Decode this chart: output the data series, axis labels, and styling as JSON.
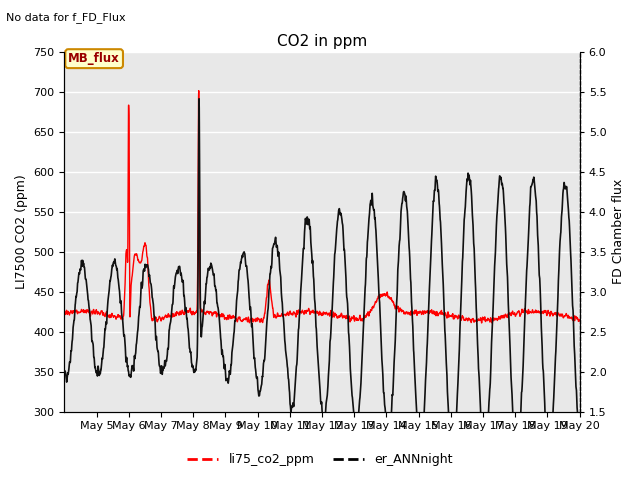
{
  "title": "CO2 in ppm",
  "top_left_text": "No data for f_FD_Flux",
  "ylabel_left": "LI7500 CO2 (ppm)",
  "ylabel_right": "FD Chamber flux",
  "ylim_left": [
    300,
    750
  ],
  "ylim_right": [
    1.5,
    6.0
  ],
  "yticks_left": [
    300,
    350,
    400,
    450,
    500,
    550,
    600,
    650,
    700,
    750
  ],
  "yticks_right": [
    1.5,
    2.0,
    2.5,
    3.0,
    3.5,
    4.0,
    4.5,
    5.0,
    5.5,
    6.0
  ],
  "xlim": [
    4,
    20
  ],
  "xtick_positions": [
    5,
    6,
    7,
    8,
    9,
    10,
    11,
    12,
    13,
    14,
    15,
    16,
    17,
    18,
    19,
    20
  ],
  "xtick_labels": [
    "May 5",
    "May 6",
    "May 7",
    "May 8",
    "May 9",
    "May 10",
    "May 11",
    "May 12",
    "May 13",
    "May 14",
    "May 15",
    "May 16",
    "May 17",
    "May 18",
    "May 19",
    "May 20"
  ],
  "legend_entries": [
    "li75_co2_ppm",
    "er_ANNnight"
  ],
  "legend_colors": [
    "#ff0000",
    "#000000"
  ],
  "mb_flux_label": "MB_flux",
  "mb_flux_box_face": "#ffffcc",
  "mb_flux_box_edge": "#cc8800",
  "mb_flux_text_color": "#990000",
  "background_color": "#ffffff",
  "plot_bg_color": "#e8e8e8",
  "grid_color": "#ffffff",
  "line_color_red": "#ff0000",
  "line_color_black": "#111111",
  "red_lw": 1.0,
  "black_lw": 1.2,
  "figsize": [
    6.4,
    4.8
  ],
  "dpi": 100
}
